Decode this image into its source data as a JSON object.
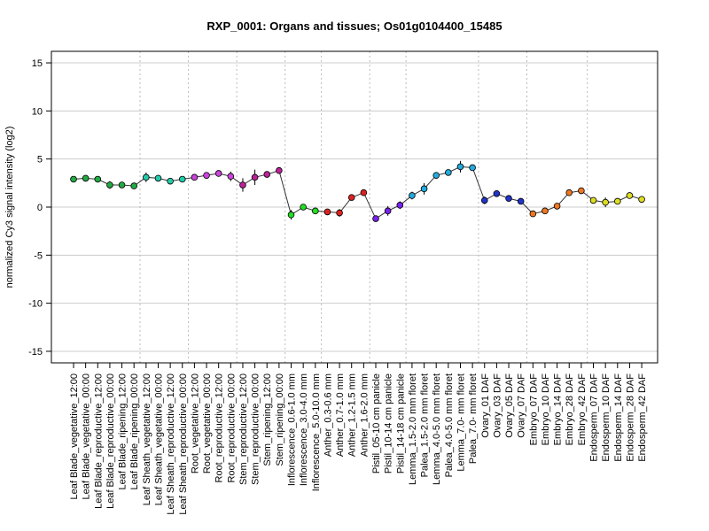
{
  "chart_data": {
    "type": "line",
    "title": "RXP_0001: Organs and tissues; Os01g0104400_15485",
    "xlabel": "",
    "ylabel": "normalized Cy3 signal intensity (log2)",
    "ylim": [
      -16.2,
      16.2
    ],
    "yticks": [
      -15,
      -10,
      -5,
      0,
      5,
      10,
      15
    ],
    "grid": true,
    "categories": [
      "Leaf Blade_vegetative_12:00",
      "Leaf Blade_vegetative_00:00",
      "Leaf Blade_reproductive_12:00",
      "Leaf Blade_reproductive_00:00",
      "Leaf Blade_ripening_12:00",
      "Leaf Blade_ripening_00:00",
      "Leaf Sheath_vegetative_12:00",
      "Leaf Sheath_vegetative_00:00",
      "Leaf Sheath_reproductive_12:00",
      "Leaf Sheath_reproductive_00:00",
      "Root_vegetative_12:00",
      "Root_vegetative_00:00",
      "Root_reproductive_12:00",
      "Root_reproductive_00:00",
      "Stem_reproductive_12:00",
      "Stem_reproductive_00:00",
      "Stem_ripening_12:00",
      "Stem_ripening_00:00",
      "Inflorescence_0.6-1.0 mm",
      "Inflorescence_3.0-4.0 mm",
      "Inflorescence_5.0-10.0 mm",
      "Anther_0.3-0.6 mm",
      "Anther_0.7-1.0 mm",
      "Anther_1.2-1.5 mm",
      "Anther_1.6-2.0 mm",
      "Pistil_05-10 cm panicle",
      "Pistil_10-14 cm panicle",
      "Pistil_14-18 cm panicle",
      "Lemma_1.5-2.0 mm floret",
      "Palea_1.5-2.0 mm floret",
      "Lemma_4.0-5.0 mm floret",
      "Palea_4.0-5.0 mm floret",
      "Lemma_7.0- mm floret",
      "Palea_7.0- mm floret",
      "Ovary_01 DAF",
      "Ovary_03 DAF",
      "Ovary_05 DAF",
      "Ovary_07 DAF",
      "Embryo_07 DAF",
      "Embryo_10 DAF",
      "Embryo_14 DAF",
      "Embryo_28 DAF",
      "Embryo_42 DAF",
      "Endosperm_07 DAF",
      "Endosperm_10 DAF",
      "Endosperm_14 DAF",
      "Endosperm_28 DAF",
      "Endosperm_42 DAF"
    ],
    "series": [
      {
        "values": [
          2.9,
          3.0,
          2.9,
          2.3,
          2.3,
          2.2,
          3.1,
          3.0,
          2.7,
          2.9,
          3.1,
          3.3,
          3.5,
          3.2,
          2.3,
          3.1,
          3.4,
          3.8,
          -0.8,
          0.0,
          -0.4,
          -0.5,
          -0.6,
          1.0,
          1.5,
          -1.2,
          -0.4,
          0.2,
          1.2,
          1.9,
          3.3,
          3.6,
          4.2,
          4.1,
          0.7,
          1.4,
          0.9,
          0.6,
          -0.7,
          -0.4,
          0.1,
          1.5,
          1.7,
          0.7,
          0.5,
          0.6,
          1.2,
          0.8
        ],
        "err": [
          0.3,
          0.3,
          0.2,
          0.4,
          0.2,
          0.2,
          0.5,
          0.3,
          0.2,
          0.2,
          0.2,
          0.2,
          0.2,
          0.5,
          0.7,
          0.8,
          0.3,
          0.3,
          0.5,
          0.3,
          0.3,
          0.3,
          0.4,
          0.3,
          0.3,
          0.3,
          0.5,
          0.4,
          0.4,
          0.6,
          0.2,
          0.2,
          0.6,
          0.3,
          0.4,
          0.3,
          0.2,
          0.3,
          0.3,
          0.2,
          0.3,
          0.2,
          0.3,
          0.3,
          0.5,
          0.3,
          0.3,
          0.2
        ],
        "colors": [
          "#22aa44",
          "#22aa44",
          "#22aa44",
          "#22aa44",
          "#22aa44",
          "#22aa44",
          "#22ccaa",
          "#22ccaa",
          "#22ccaa",
          "#22ccaa",
          "#cc44dd",
          "#cc44dd",
          "#cc44dd",
          "#cc44dd",
          "#bb2299",
          "#bb2299",
          "#bb2299",
          "#bb2299",
          "#22dd22",
          "#22dd22",
          "#22dd22",
          "#dd2222",
          "#dd2222",
          "#dd2222",
          "#dd2222",
          "#7722ee",
          "#7722ee",
          "#7722ee",
          "#22aadd",
          "#22aadd",
          "#22aadd",
          "#22aadd",
          "#22aadd",
          "#22aadd",
          "#2233cc",
          "#2233cc",
          "#2233cc",
          "#2233cc",
          "#ee7722",
          "#ee7722",
          "#ee7722",
          "#ee7722",
          "#ee7722",
          "#dddd22",
          "#dddd22",
          "#dddd22",
          "#dddd22",
          "#dddd22"
        ]
      }
    ],
    "group_separators_after_index": [
      5,
      9,
      13,
      17,
      20,
      24,
      27,
      33,
      37,
      42
    ]
  }
}
